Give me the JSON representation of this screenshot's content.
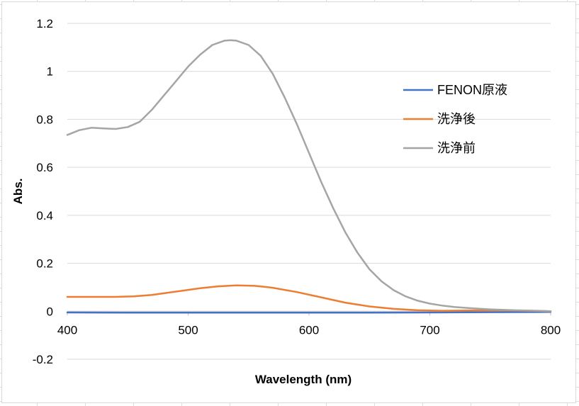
{
  "chart_data": {
    "type": "line",
    "title": "",
    "xlabel": "Wavelength (nm)",
    "ylabel": "Abs.",
    "xlim": [
      400,
      800
    ],
    "ylim": [
      -0.2,
      1.2
    ],
    "x_ticks": [
      400,
      500,
      600,
      700,
      800
    ],
    "y_ticks": [
      1.2,
      1,
      0.8,
      0.6,
      0.4,
      0.2,
      0,
      -0.2
    ],
    "y_tick_labels": [
      "1.2",
      "1",
      "0.8",
      "0.6",
      "0.4",
      "0.2",
      "0",
      "-0.2"
    ],
    "grid": "horizontal",
    "legend_position": "right",
    "series": [
      {
        "name": "FENON原液",
        "color": "#4472C4",
        "x": [
          400,
          450,
          500,
          550,
          600,
          650,
          700,
          750,
          800
        ],
        "y": [
          -0.005,
          -0.006,
          -0.006,
          -0.006,
          -0.006,
          -0.006,
          -0.005,
          -0.004,
          -0.003
        ]
      },
      {
        "name": "洗浄後",
        "color": "#ED7D31",
        "x": [
          400,
          420,
          440,
          455,
          470,
          490,
          510,
          525,
          540,
          555,
          570,
          590,
          610,
          630,
          650,
          670,
          690,
          710,
          730,
          750,
          770,
          790,
          800
        ],
        "y": [
          0.06,
          0.06,
          0.06,
          0.062,
          0.068,
          0.082,
          0.096,
          0.104,
          0.108,
          0.106,
          0.098,
          0.08,
          0.058,
          0.036,
          0.02,
          0.01,
          0.004,
          0.002,
          0.003,
          0.004,
          0.003,
          0.001,
          0
        ]
      },
      {
        "name": "洗浄前",
        "color": "#A5A5A5",
        "x": [
          400,
          410,
          420,
          430,
          440,
          450,
          460,
          470,
          480,
          490,
          500,
          510,
          520,
          530,
          535,
          540,
          550,
          560,
          570,
          580,
          590,
          600,
          610,
          620,
          630,
          640,
          650,
          660,
          670,
          680,
          690,
          700,
          710,
          720,
          730,
          740,
          750,
          760,
          770,
          780,
          790,
          800
        ],
        "y": [
          0.735,
          0.755,
          0.765,
          0.762,
          0.76,
          0.768,
          0.79,
          0.84,
          0.9,
          0.96,
          1.02,
          1.07,
          1.11,
          1.128,
          1.13,
          1.128,
          1.11,
          1.065,
          0.99,
          0.89,
          0.78,
          0.66,
          0.54,
          0.43,
          0.33,
          0.245,
          0.175,
          0.125,
          0.088,
          0.062,
          0.044,
          0.032,
          0.024,
          0.018,
          0.014,
          0.011,
          0.008,
          0.006,
          0.004,
          0.003,
          0.002,
          0
        ]
      }
    ]
  }
}
